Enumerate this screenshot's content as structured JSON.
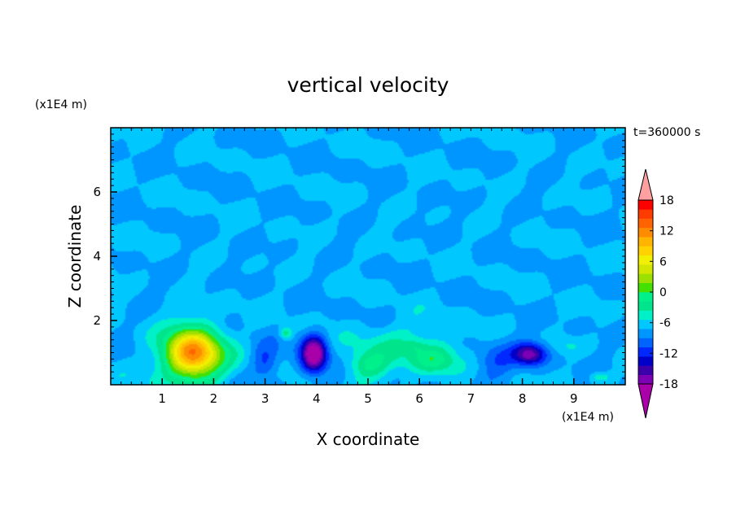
{
  "chart_data": {
    "type": "heatmap",
    "title": "vertical velocity",
    "xlabel": "X coordinate",
    "ylabel": "Z coordinate",
    "x_unit": "(x1E4 m)",
    "z_unit": "(x1E4 m)",
    "time_label": "t=360000 s",
    "xlim": [
      0,
      10
    ],
    "zlim": [
      0,
      8
    ],
    "x_ticks": [
      "1",
      "2",
      "3",
      "4",
      "5",
      "6",
      "7",
      "8",
      "9"
    ],
    "z_ticks": [
      "2",
      "4",
      "6"
    ],
    "colorbar": {
      "ticks": [
        "18",
        "12",
        "6",
        "0",
        "-6",
        "-12",
        "-18"
      ],
      "range": [
        -21,
        21
      ],
      "step": 3,
      "extend": "both"
    },
    "features": [
      {
        "x": 1.6,
        "z": 0.95,
        "w": 33,
        "sx": 0.55,
        "sz": 0.8
      },
      {
        "x": 3.4,
        "z": 1.6,
        "w": 8,
        "sx": 0.12,
        "sz": 0.2
      },
      {
        "x": 3.0,
        "z": 0.7,
        "w": -7,
        "sx": 0.25,
        "sz": 0.5
      },
      {
        "x": 3.95,
        "z": 0.95,
        "w": -22,
        "sx": 0.25,
        "sz": 0.6
      },
      {
        "x": 5.0,
        "z": 0.6,
        "w": 9,
        "sx": 0.4,
        "sz": 0.45
      },
      {
        "x": 6.3,
        "z": 0.75,
        "w": 9,
        "sx": 0.45,
        "sz": 0.45
      },
      {
        "x": 5.7,
        "z": 1.25,
        "w": 5,
        "sx": 1.0,
        "sz": 0.7
      },
      {
        "x": 5.9,
        "z": 1.2,
        "w": 3,
        "sx": 0.2,
        "sz": 0.2
      },
      {
        "x": 8.15,
        "z": 0.95,
        "w": -17,
        "sx": 0.32,
        "sz": 0.35
      },
      {
        "x": 7.5,
        "z": 0.8,
        "w": -5,
        "sx": 0.4,
        "sz": 0.6
      },
      {
        "x": 8.9,
        "z": 1.2,
        "w": 3,
        "sx": 0.3,
        "sz": 0.25
      },
      {
        "x": 9.5,
        "z": 0.25,
        "w": 6,
        "sx": 0.2,
        "sz": 0.15
      }
    ]
  },
  "colors": {
    "palette": [
      "#aa00aa",
      "#7d00b4",
      "#3c00aa",
      "#0000c8",
      "#0028ff",
      "#0064ff",
      "#0096ff",
      "#00c8ff",
      "#00f0c8",
      "#00e58c",
      "#00f08c",
      "#44e000",
      "#9be000",
      "#d2e600",
      "#f0f000",
      "#ffd200",
      "#ffb400",
      "#ff8c00",
      "#ff6400",
      "#ff3c00",
      "#ff0000",
      "#ffa0a0"
    ]
  }
}
